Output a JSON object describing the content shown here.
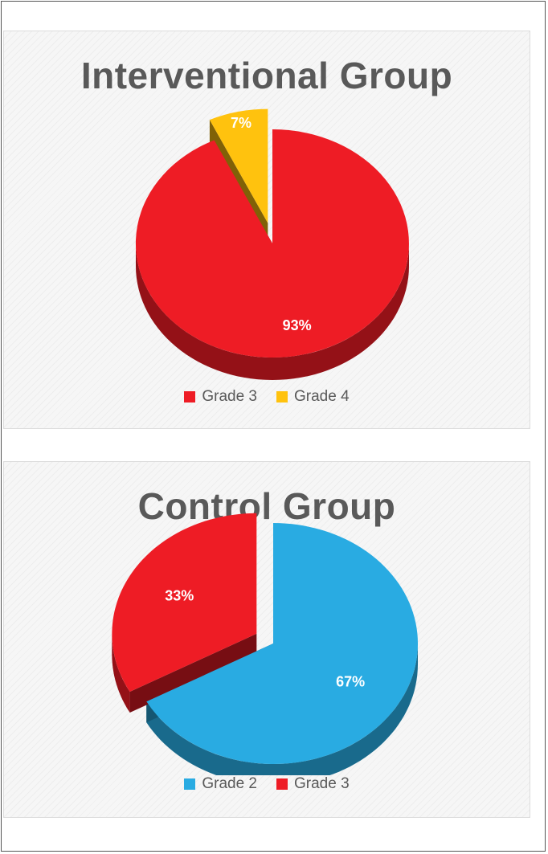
{
  "chart_data": [
    {
      "type": "pie",
      "title": "Interventional Group",
      "categories": [
        "Grade 3",
        "Grade 4"
      ],
      "values": [
        93,
        7
      ],
      "labels": [
        "93%",
        "7%"
      ],
      "colors": [
        "#ee1c25",
        "#ffc20e"
      ],
      "exploded": [
        "Grade 4"
      ],
      "legend_position": "bottom"
    },
    {
      "type": "pie",
      "title": "Control Group",
      "categories": [
        "Grade 2",
        "Grade 3"
      ],
      "values": [
        67,
        33
      ],
      "labels": [
        "67%",
        "33%"
      ],
      "colors": [
        "#29abe2",
        "#ee1c25"
      ],
      "exploded": [
        "Grade 3"
      ],
      "legend_position": "bottom"
    }
  ]
}
